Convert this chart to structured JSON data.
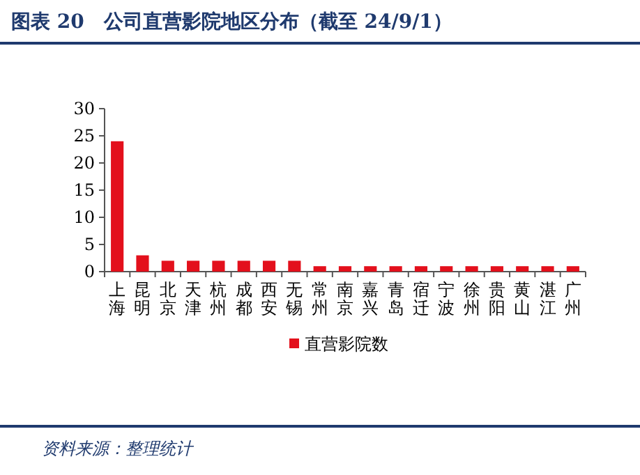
{
  "chart_data": {
    "type": "bar",
    "title": "图表 20　公司直营影院地区分布（截至 24/9/1）",
    "categories": [
      "上海",
      "昆明",
      "北京",
      "天津",
      "杭州",
      "成都",
      "西安",
      "无锡",
      "常州",
      "南京",
      "嘉兴",
      "青岛",
      "宿迁",
      "宁波",
      "徐州",
      "贵阳",
      "黄山",
      "湛江",
      "广州"
    ],
    "series": [
      {
        "name": "直营影院数",
        "color": "#e3101c",
        "values": [
          24,
          3,
          2,
          2,
          2,
          2,
          2,
          2,
          1,
          1,
          1,
          1,
          1,
          1,
          1,
          1,
          1,
          1,
          1
        ]
      }
    ],
    "ylim": [
      0,
      30
    ],
    "yticks": [
      0,
      5,
      10,
      15,
      20,
      25,
      30
    ],
    "grid": false,
    "legend": "bottom",
    "annotations": [
      "资料来源：整理统计"
    ]
  }
}
